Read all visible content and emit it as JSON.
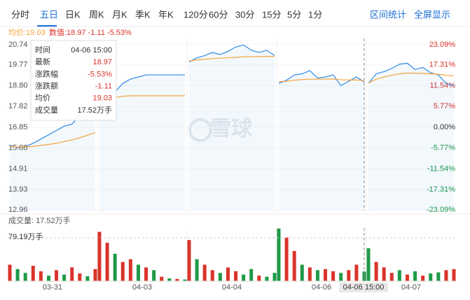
{
  "tabs": [
    "分时",
    "五日",
    "日K",
    "周K",
    "月K",
    "季K",
    "年K",
    "120分",
    "60分",
    "30分",
    "15分",
    "5分",
    "1分"
  ],
  "active_tab": 1,
  "right_links": [
    "区间统计",
    "全屏显示"
  ],
  "info": {
    "avg": "均价:19.03",
    "value": "数值:18.97 -1.11 -5.53%"
  },
  "watermark": "雪球",
  "chart_data": {
    "type": "line",
    "ylim": [
      12.96,
      20.74
    ],
    "yticks": [
      20.74,
      19.77,
      {
        "value": 18.8,
        "label": "18.80"
      },
      17.82,
      16.85,
      15.88,
      14.91,
      13.93,
      12.96
    ],
    "pct_ticks": [
      "23.09%",
      "17.31%",
      "11.54%",
      "5.77%",
      "0.00%",
      "-5.77%",
      "-11.54%",
      "-17.31%",
      "-23.09%"
    ],
    "colors": {
      "price": "#2f8ae5",
      "avg": "#f5a23a",
      "up": "#d9342b",
      "down": "#1f9a48"
    },
    "volume_label": "成交量: 17.52万手",
    "volume_ref": {
      "value": 79.19,
      "label": "79.19万手"
    },
    "vlim": [
      0,
      97
    ],
    "crosshair": {
      "day": 3,
      "index": 11,
      "label": "04-06 15:00"
    },
    "days": [
      {
        "label": "03-31",
        "price": [
          16.0,
          15.9,
          15.95,
          16.1,
          16.3,
          16.5,
          16.7,
          16.9,
          17.0,
          17.4,
          17.7,
          17.9
        ],
        "avg": [
          15.95,
          15.93,
          15.93,
          15.96,
          16.0,
          16.05,
          16.1,
          16.18,
          16.26,
          16.36,
          16.48,
          16.6
        ],
        "volume": [
          30,
          22,
          15,
          28,
          18,
          10,
          20,
          12,
          25,
          14,
          9,
          22
        ],
        "up": [
          1,
          0,
          0,
          1,
          1,
          0,
          1,
          0,
          1,
          1,
          0,
          1
        ]
      },
      {
        "label": "04-03",
        "price": [
          18.0,
          18.2,
          18.5,
          18.9,
          19.1,
          19.2,
          19.3,
          19.3,
          19.3,
          19.3,
          19.3,
          19.3
        ],
        "avg": [
          18.1,
          18.2,
          18.25,
          18.3,
          18.32,
          18.32,
          18.32,
          18.32,
          18.32,
          18.32,
          18.32,
          18.32
        ],
        "volume": [
          90,
          70,
          50,
          35,
          40,
          30,
          25,
          20,
          8,
          5,
          4,
          3
        ],
        "up": [
          1,
          1,
          0,
          1,
          1,
          0,
          1,
          0,
          1,
          0,
          1,
          0
        ]
      },
      {
        "label": "04-04",
        "price": [
          19.9,
          20.1,
          20.2,
          20.35,
          20.25,
          20.4,
          20.6,
          20.7,
          20.45,
          20.35,
          20.45,
          20.2
        ],
        "avg": [
          19.95,
          20.0,
          20.03,
          20.06,
          20.08,
          20.1,
          20.12,
          20.14,
          20.15,
          20.16,
          20.16,
          20.16
        ],
        "volume": [
          75,
          40,
          30,
          20,
          15,
          25,
          18,
          12,
          22,
          10,
          8,
          15
        ],
        "up": [
          1,
          0,
          1,
          1,
          0,
          1,
          1,
          0,
          0,
          1,
          0,
          0
        ]
      },
      {
        "label": "04-06",
        "price": [
          18.9,
          19.05,
          19.3,
          19.35,
          19.5,
          19.15,
          19.2,
          19.3,
          18.8,
          19.0,
          19.2,
          18.97
        ],
        "avg": [
          18.98,
          19.0,
          19.05,
          19.08,
          19.1,
          19.1,
          19.1,
          19.1,
          19.07,
          19.06,
          19.06,
          19.03
        ],
        "volume": [
          96,
          80,
          55,
          30,
          25,
          20,
          22,
          18,
          15,
          20,
          30,
          17.52
        ],
        "up": [
          0,
          1,
          1,
          0,
          1,
          0,
          1,
          1,
          0,
          1,
          1,
          0
        ]
      },
      {
        "label": "04-07",
        "price": [
          18.9,
          19.35,
          19.45,
          19.6,
          19.8,
          19.85,
          19.55,
          19.65,
          19.4,
          19.3,
          18.9,
          18.8
        ],
        "avg": [
          18.92,
          19.1,
          19.2,
          19.28,
          19.35,
          19.38,
          19.38,
          19.37,
          19.35,
          19.33,
          19.28,
          19.25
        ],
        "volume": [
          60,
          35,
          25,
          15,
          20,
          12,
          18,
          10,
          14,
          16,
          20,
          22
        ],
        "up": [
          0,
          1,
          1,
          1,
          0,
          1,
          0,
          1,
          0,
          0,
          1,
          1
        ]
      }
    ]
  },
  "tooltip": {
    "rows": [
      [
        "时间",
        "04-06 15:00"
      ],
      [
        "最新",
        "18.97"
      ],
      [
        "涨跌幅",
        "-5.53%"
      ],
      [
        "涨跌额",
        "-1.11"
      ],
      [
        "均价",
        "19.03"
      ],
      [
        "成交量",
        "17.52万手"
      ]
    ]
  }
}
